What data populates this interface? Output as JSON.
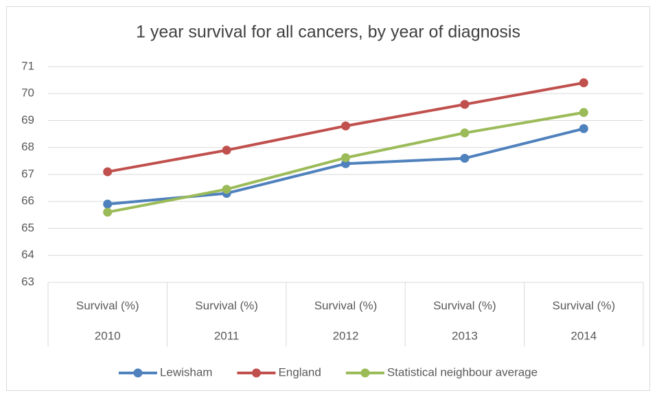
{
  "chart_data": {
    "type": "line",
    "title": "1 year survival for all cancers, by year of diagnosis",
    "categories": [
      "2010",
      "2011",
      "2012",
      "2013",
      "2014"
    ],
    "category_sublabels": [
      "Survival (%)",
      "Survival (%)",
      "Survival (%)",
      "Survival (%)",
      "Survival (%)"
    ],
    "series": [
      {
        "name": "Lewisham",
        "color": "#4f81bd",
        "values": [
          65.9,
          66.3,
          67.4,
          67.6,
          68.7
        ]
      },
      {
        "name": "England",
        "color": "#c0504d",
        "values": [
          67.1,
          67.9,
          68.8,
          69.6,
          70.4
        ]
      },
      {
        "name": "Statistical neighbour average",
        "color": "#9bbb59",
        "values": [
          65.6,
          66.45,
          67.62,
          68.54,
          69.3
        ]
      }
    ],
    "ylim": [
      63,
      71
    ],
    "yticks": [
      63,
      64,
      65,
      66,
      67,
      68,
      69,
      70,
      71
    ],
    "grid": true,
    "legend": "bottom"
  }
}
